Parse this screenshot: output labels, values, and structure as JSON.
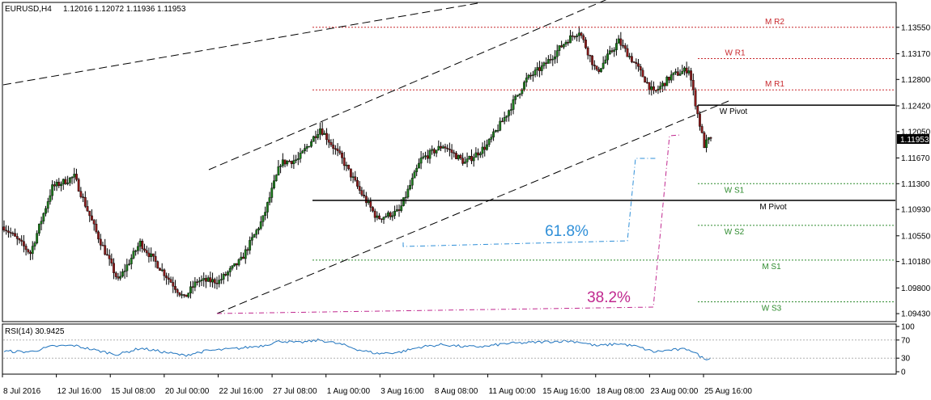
{
  "header": {
    "symbol": "EURUSD,H4",
    "quote": "1.12016 1.12072 1.11936 1.11953"
  },
  "chart_data": [
    {
      "type": "candlestick",
      "ylim": [
        1.0935,
        1.1385
      ],
      "y_ticks": [
        "1.13550",
        "1.13170",
        "1.12800",
        "1.12420",
        "1.12050",
        "1.11670",
        "1.11300",
        "1.10930",
        "1.10550",
        "1.10180",
        "1.09800",
        "1.09430"
      ],
      "x_ticks": [
        "8 Jul 2016",
        "12 Jul 16:00",
        "15 Jul 08:00",
        "20 Jul 00:00",
        "22 Jul 16:00",
        "27 Jul 08:00",
        "1 Aug 00:00",
        "3 Aug 16:00",
        "8 Aug 08:00",
        "11 Aug 00:00",
        "15 Aug 16:00",
        "18 Aug 08:00",
        "23 Aug 00:00",
        "25 Aug 16:00"
      ],
      "last_price": "1.11953",
      "grid": false,
      "up_color": "#1b7a1b",
      "down_color": "#8b1a1a",
      "anchors": [
        {
          "x": 0,
          "price": 1.1068
        },
        {
          "x": 12,
          "price": 1.103
        },
        {
          "x": 22,
          "price": 1.1125
        },
        {
          "x": 32,
          "price": 1.114
        },
        {
          "x": 42,
          "price": 1.106
        },
        {
          "x": 52,
          "price": 1.099
        },
        {
          "x": 62,
          "price": 1.1045
        },
        {
          "x": 72,
          "price": 1.1005
        },
        {
          "x": 82,
          "price": 1.0965
        },
        {
          "x": 88,
          "price": 1.099
        },
        {
          "x": 98,
          "price": 1.099
        },
        {
          "x": 108,
          "price": 1.102
        },
        {
          "x": 118,
          "price": 1.108
        },
        {
          "x": 126,
          "price": 1.116
        },
        {
          "x": 134,
          "price": 1.1165
        },
        {
          "x": 144,
          "price": 1.121
        },
        {
          "x": 154,
          "price": 1.1165
        },
        {
          "x": 162,
          "price": 1.112
        },
        {
          "x": 170,
          "price": 1.108
        },
        {
          "x": 180,
          "price": 1.109
        },
        {
          "x": 190,
          "price": 1.1165
        },
        {
          "x": 200,
          "price": 1.1185
        },
        {
          "x": 210,
          "price": 1.116
        },
        {
          "x": 220,
          "price": 1.1185
        },
        {
          "x": 228,
          "price": 1.1225
        },
        {
          "x": 238,
          "price": 1.128
        },
        {
          "x": 246,
          "price": 1.13
        },
        {
          "x": 256,
          "price": 1.1335
        },
        {
          "x": 262,
          "price": 1.135
        },
        {
          "x": 270,
          "price": 1.129
        },
        {
          "x": 280,
          "price": 1.1335
        },
        {
          "x": 288,
          "price": 1.13
        },
        {
          "x": 296,
          "price": 1.126
        },
        {
          "x": 304,
          "price": 1.1285
        },
        {
          "x": 312,
          "price": 1.1295
        },
        {
          "x": 316,
          "price": 1.123
        },
        {
          "x": 319,
          "price": 1.1185
        },
        {
          "x": 322,
          "price": 1.1197
        }
      ]
    },
    {
      "type": "line",
      "title": "RSI(14) 30.9425",
      "ylim": [
        0,
        100
      ],
      "y_ticks": [
        "100",
        "70",
        "30",
        "0"
      ],
      "levels": [
        70,
        30
      ],
      "color": "#1e73be",
      "anchors": [
        {
          "x": 0,
          "v": 45
        },
        {
          "x": 12,
          "v": 44
        },
        {
          "x": 22,
          "v": 56
        },
        {
          "x": 32,
          "v": 58
        },
        {
          "x": 42,
          "v": 47
        },
        {
          "x": 52,
          "v": 38
        },
        {
          "x": 62,
          "v": 52
        },
        {
          "x": 72,
          "v": 44
        },
        {
          "x": 82,
          "v": 36
        },
        {
          "x": 92,
          "v": 46
        },
        {
          "x": 108,
          "v": 52
        },
        {
          "x": 118,
          "v": 58
        },
        {
          "x": 126,
          "v": 68
        },
        {
          "x": 134,
          "v": 64
        },
        {
          "x": 144,
          "v": 70
        },
        {
          "x": 154,
          "v": 60
        },
        {
          "x": 162,
          "v": 48
        },
        {
          "x": 170,
          "v": 40
        },
        {
          "x": 180,
          "v": 43
        },
        {
          "x": 190,
          "v": 55
        },
        {
          "x": 200,
          "v": 60
        },
        {
          "x": 210,
          "v": 55
        },
        {
          "x": 220,
          "v": 56
        },
        {
          "x": 228,
          "v": 62
        },
        {
          "x": 238,
          "v": 64
        },
        {
          "x": 246,
          "v": 66
        },
        {
          "x": 256,
          "v": 68
        },
        {
          "x": 262,
          "v": 66
        },
        {
          "x": 270,
          "v": 57
        },
        {
          "x": 280,
          "v": 62
        },
        {
          "x": 288,
          "v": 56
        },
        {
          "x": 296,
          "v": 44
        },
        {
          "x": 304,
          "v": 48
        },
        {
          "x": 312,
          "v": 50
        },
        {
          "x": 316,
          "v": 38
        },
        {
          "x": 319,
          "v": 28
        },
        {
          "x": 322,
          "v": 31
        }
      ]
    }
  ],
  "pivot_levels": [
    {
      "label": "M R2",
      "price": 1.1355,
      "color": "#c8282d",
      "style": "dotted"
    },
    {
      "label": "W R1",
      "price": 1.131,
      "color": "#c8282d",
      "style": "dotted"
    },
    {
      "label": "M R1",
      "price": 1.1265,
      "color": "#c8282d",
      "style": "dotted"
    },
    {
      "label": "W Pivot",
      "price": 1.1243,
      "color": "#000000",
      "style": "solid"
    },
    {
      "label": "W S1",
      "price": 1.113,
      "color": "#2e8b2e",
      "style": "dotted"
    },
    {
      "label": "M Pivot",
      "price": 1.1106,
      "color": "#000000",
      "style": "solid"
    },
    {
      "label": "W S2",
      "price": 1.107,
      "color": "#2e8b2e",
      "style": "dotted"
    },
    {
      "label": "M S1",
      "price": 1.102,
      "color": "#2e8b2e",
      "style": "dotted"
    },
    {
      "label": "W S3",
      "price": 1.096,
      "color": "#2e8b2e",
      "style": "dotted"
    }
  ],
  "fibonacci": [
    {
      "label": "61.8%",
      "color": "#2f8fd8"
    },
    {
      "label": "38.2%",
      "color": "#c0288f"
    }
  ]
}
